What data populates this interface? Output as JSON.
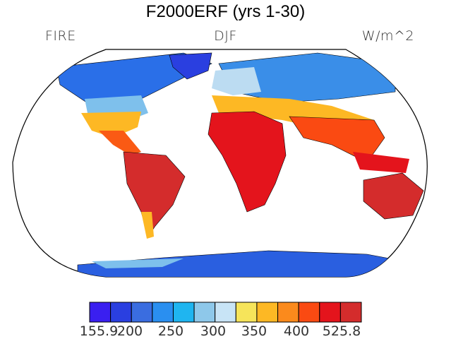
{
  "title": "F2000ERF (yrs 1-30)",
  "left_label": "FIRE",
  "center_label": "DJF",
  "right_label": "W/m^2",
  "colorbar": {
    "colors": [
      "#3a1ff0",
      "#2a3fe0",
      "#3a6de0",
      "#2a8ff0",
      "#1fb5f0",
      "#8ec8ea",
      "#c8e4f6",
      "#f6e45a",
      "#fdb824",
      "#fb8a1c",
      "#fa4a12",
      "#e4141c",
      "#d42c2c"
    ],
    "ticks": [
      "155.9",
      "200",
      "250",
      "300",
      "350",
      "400",
      "525.8"
    ]
  }
}
